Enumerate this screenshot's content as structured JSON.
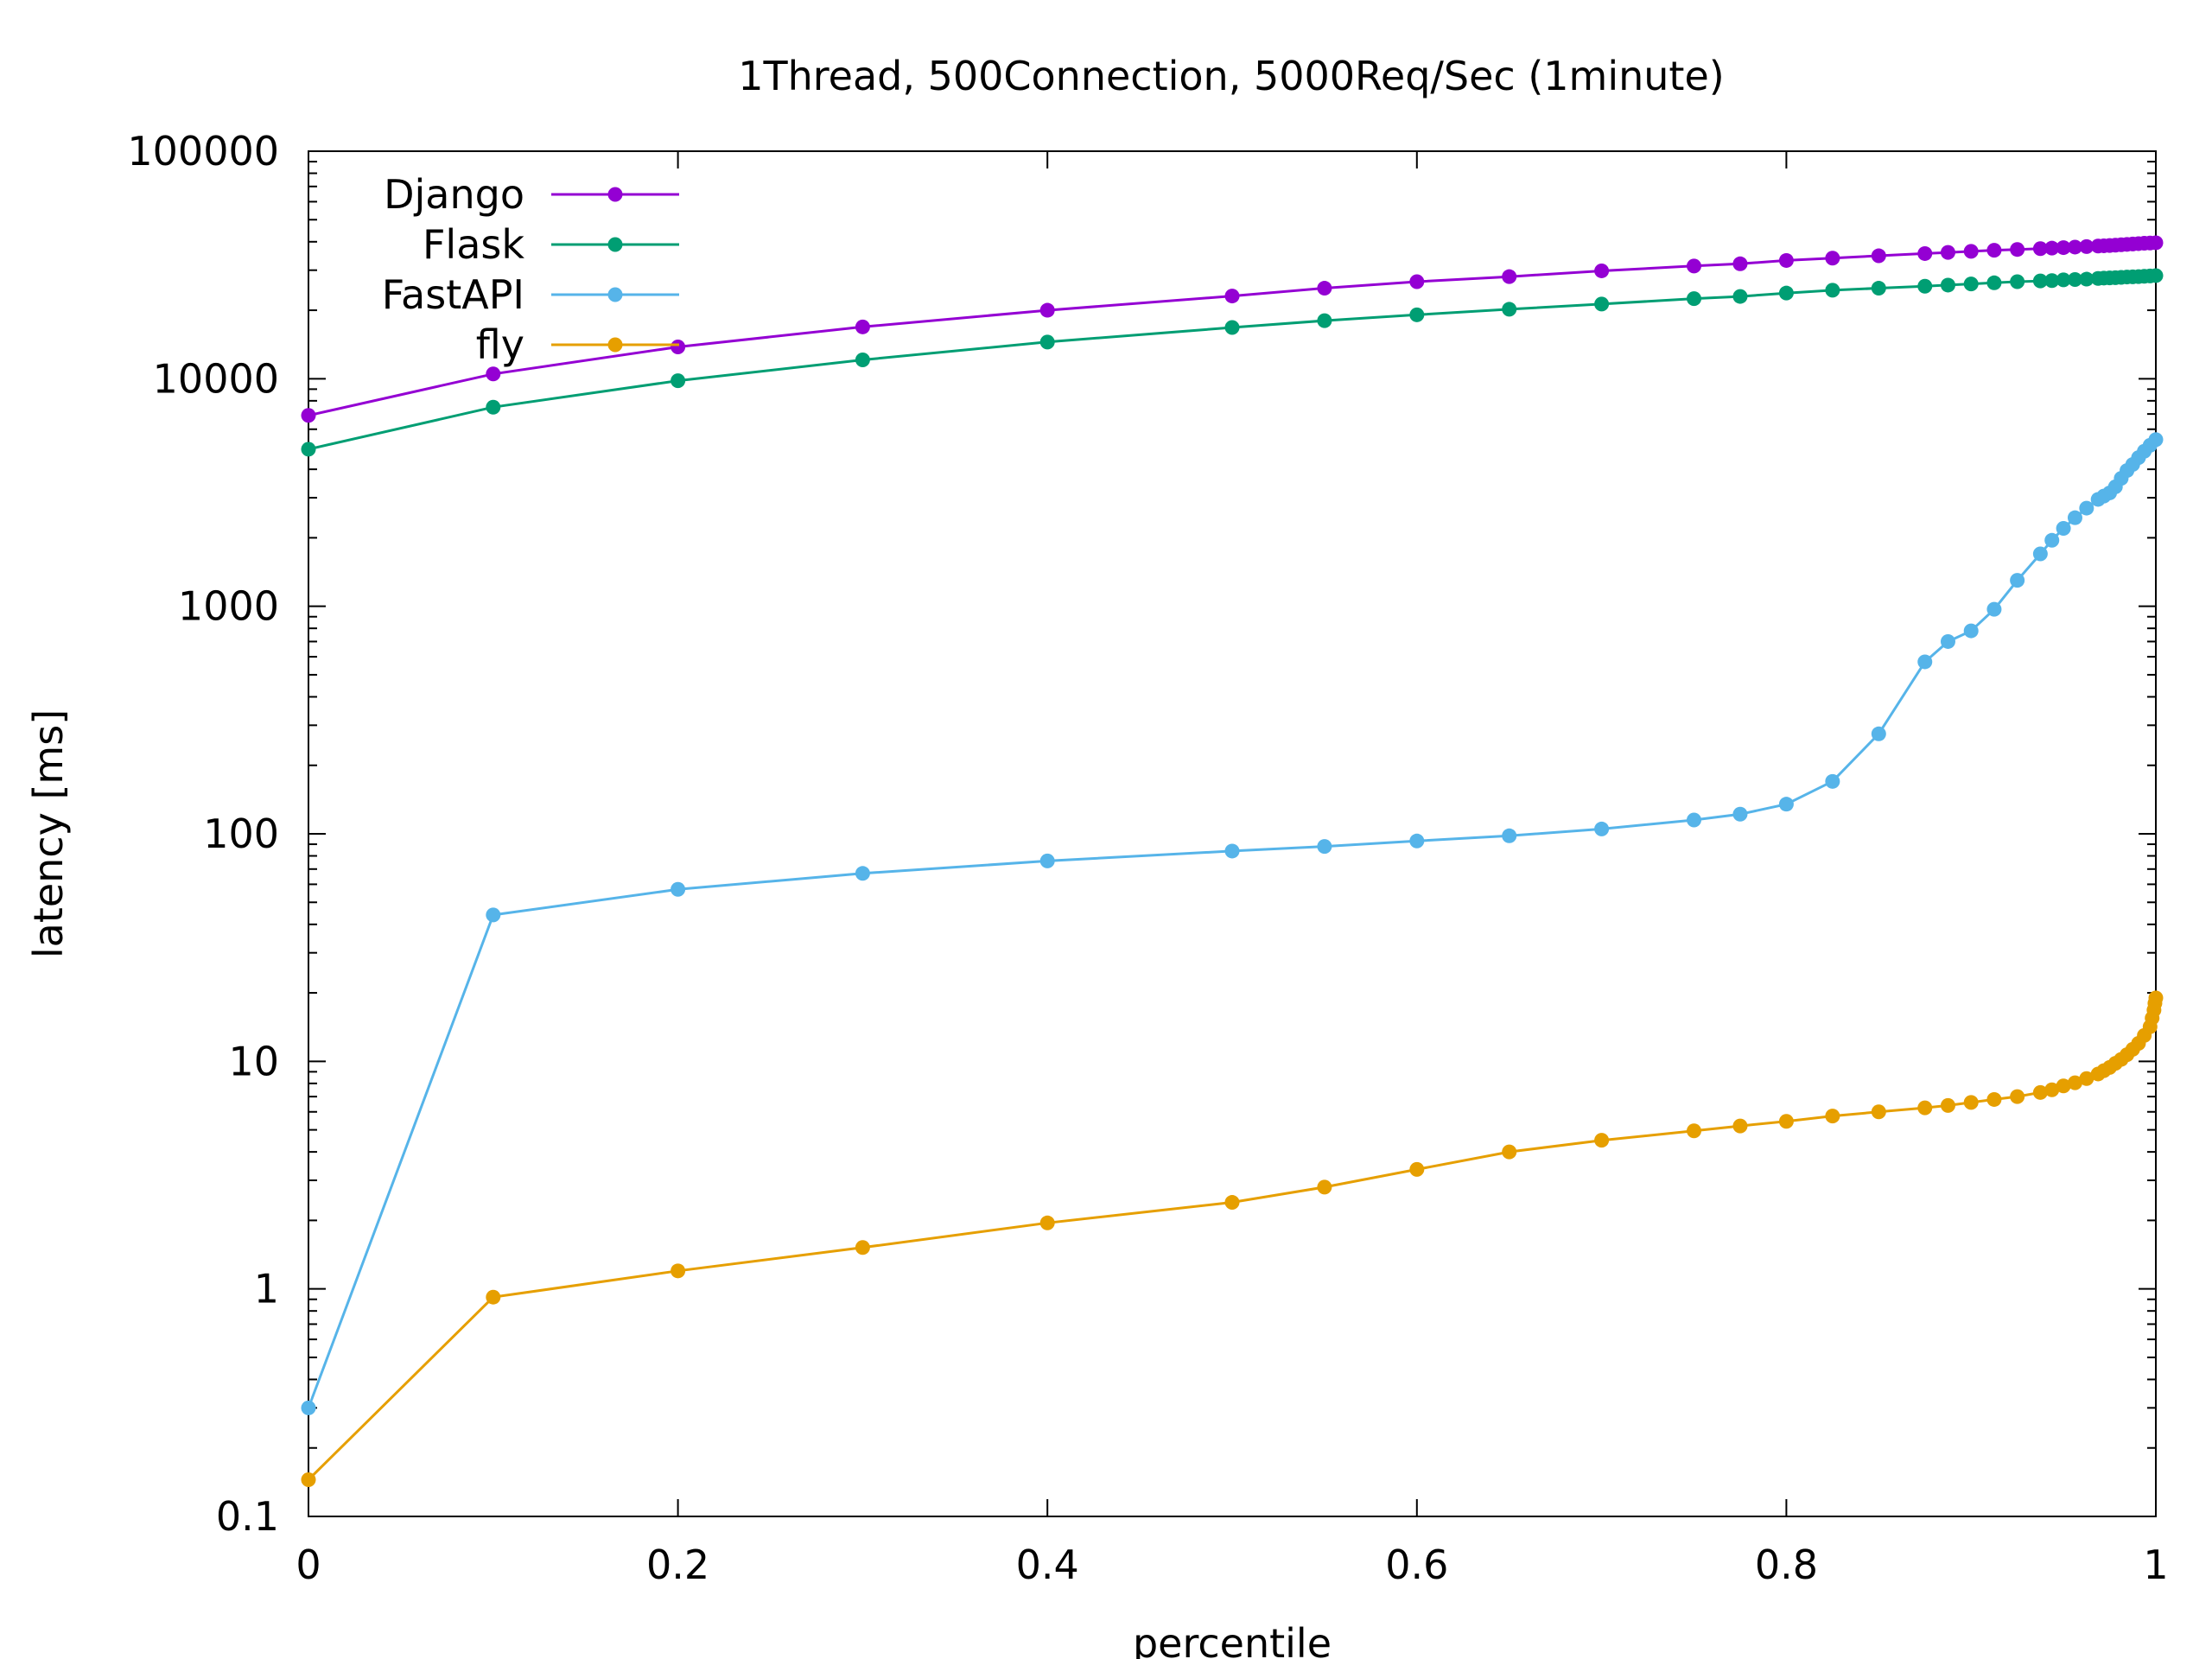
{
  "chart_data": {
    "type": "line",
    "title": "1Thread, 500Connection, 5000Req/Sec (1minute)",
    "xlabel": "percentile",
    "ylabel": "latency [ms]",
    "xlim": [
      0,
      1
    ],
    "ylim": [
      0.1,
      100000
    ],
    "yscale": "log",
    "grid": false,
    "legend_position": "top-left",
    "x_ticks": [
      "0",
      "0.2",
      "0.4",
      "0.6",
      "0.8",
      "1"
    ],
    "y_ticks": [
      "0.1",
      "1",
      "10",
      "100",
      "1000",
      "10000",
      "100000"
    ],
    "series": [
      {
        "name": "Django",
        "color": "#9400D3",
        "x": [
          0,
          0.1,
          0.2,
          0.3,
          0.4,
          0.5,
          0.55,
          0.6,
          0.65,
          0.7,
          0.75,
          0.775,
          0.8,
          0.825,
          0.85,
          0.875,
          0.8875,
          0.9,
          0.9125,
          0.925,
          0.9375,
          0.94375,
          0.95,
          0.95625,
          0.9625,
          0.96875,
          0.971875,
          0.975,
          0.978125,
          0.98125,
          0.984375,
          0.9875,
          0.990625,
          0.99375,
          0.996875,
          1
        ],
        "y": [
          6900,
          10500,
          13800,
          16900,
          20000,
          23100,
          25000,
          26700,
          28100,
          29800,
          31300,
          32000,
          33100,
          33900,
          34700,
          35500,
          35900,
          36300,
          36700,
          37000,
          37300,
          37500,
          37700,
          37900,
          38100,
          38300,
          38400,
          38500,
          38650,
          38800,
          38950,
          39100,
          39250,
          39400,
          39500,
          39600
        ]
      },
      {
        "name": "Flask",
        "color": "#009E73",
        "x": [
          0,
          0.1,
          0.2,
          0.3,
          0.4,
          0.5,
          0.55,
          0.6,
          0.65,
          0.7,
          0.75,
          0.775,
          0.8,
          0.825,
          0.85,
          0.875,
          0.8875,
          0.9,
          0.9125,
          0.925,
          0.9375,
          0.94375,
          0.95,
          0.95625,
          0.9625,
          0.96875,
          0.971875,
          0.975,
          0.978125,
          0.98125,
          0.984375,
          0.9875,
          0.990625,
          0.99375,
          0.996875,
          1
        ],
        "y": [
          4900,
          7500,
          9800,
          12100,
          14500,
          16800,
          18000,
          19100,
          20200,
          21300,
          22500,
          23000,
          23800,
          24500,
          25000,
          25500,
          25800,
          26100,
          26400,
          26700,
          26900,
          27000,
          27200,
          27300,
          27400,
          27600,
          27700,
          27750,
          27800,
          27900,
          28000,
          28050,
          28100,
          28200,
          28300,
          28400
        ]
      },
      {
        "name": "FastAPI",
        "color": "#56B4E9",
        "x": [
          0,
          0.1,
          0.2,
          0.3,
          0.4,
          0.5,
          0.55,
          0.6,
          0.65,
          0.7,
          0.75,
          0.775,
          0.8,
          0.825,
          0.85,
          0.875,
          0.8875,
          0.9,
          0.9125,
          0.925,
          0.9375,
          0.94375,
          0.95,
          0.95625,
          0.9625,
          0.96875,
          0.971875,
          0.975,
          0.978125,
          0.98125,
          0.984375,
          0.9875,
          0.990625,
          0.99375,
          0.996875,
          1
        ],
        "y": [
          0.3,
          44,
          57,
          67,
          76,
          84,
          88,
          93,
          98,
          105,
          115,
          122,
          135,
          170,
          275,
          570,
          700,
          780,
          970,
          1300,
          1700,
          1950,
          2200,
          2450,
          2700,
          2950,
          3050,
          3150,
          3350,
          3650,
          3950,
          4200,
          4500,
          4800,
          5100,
          5400
        ]
      },
      {
        "name": "fly",
        "color": "#E69F00",
        "x": [
          0,
          0.1,
          0.2,
          0.3,
          0.4,
          0.5,
          0.55,
          0.6,
          0.65,
          0.7,
          0.75,
          0.775,
          0.8,
          0.825,
          0.85,
          0.875,
          0.8875,
          0.9,
          0.9125,
          0.925,
          0.9375,
          0.94375,
          0.95,
          0.95625,
          0.9625,
          0.96875,
          0.971875,
          0.975,
          0.978125,
          0.98125,
          0.984375,
          0.9875,
          0.990625,
          0.99375,
          0.996875,
          0.998,
          0.999,
          0.9995,
          1
        ],
        "y": [
          0.145,
          0.92,
          1.2,
          1.52,
          1.95,
          2.4,
          2.8,
          3.35,
          4.0,
          4.5,
          4.95,
          5.2,
          5.45,
          5.75,
          6.0,
          6.25,
          6.4,
          6.6,
          6.8,
          7.0,
          7.3,
          7.5,
          7.8,
          8.05,
          8.4,
          8.8,
          9.1,
          9.4,
          9.8,
          10.2,
          10.7,
          11.3,
          12.0,
          13.0,
          14.2,
          15.5,
          16.8,
          18.0,
          19.0
        ]
      }
    ]
  }
}
